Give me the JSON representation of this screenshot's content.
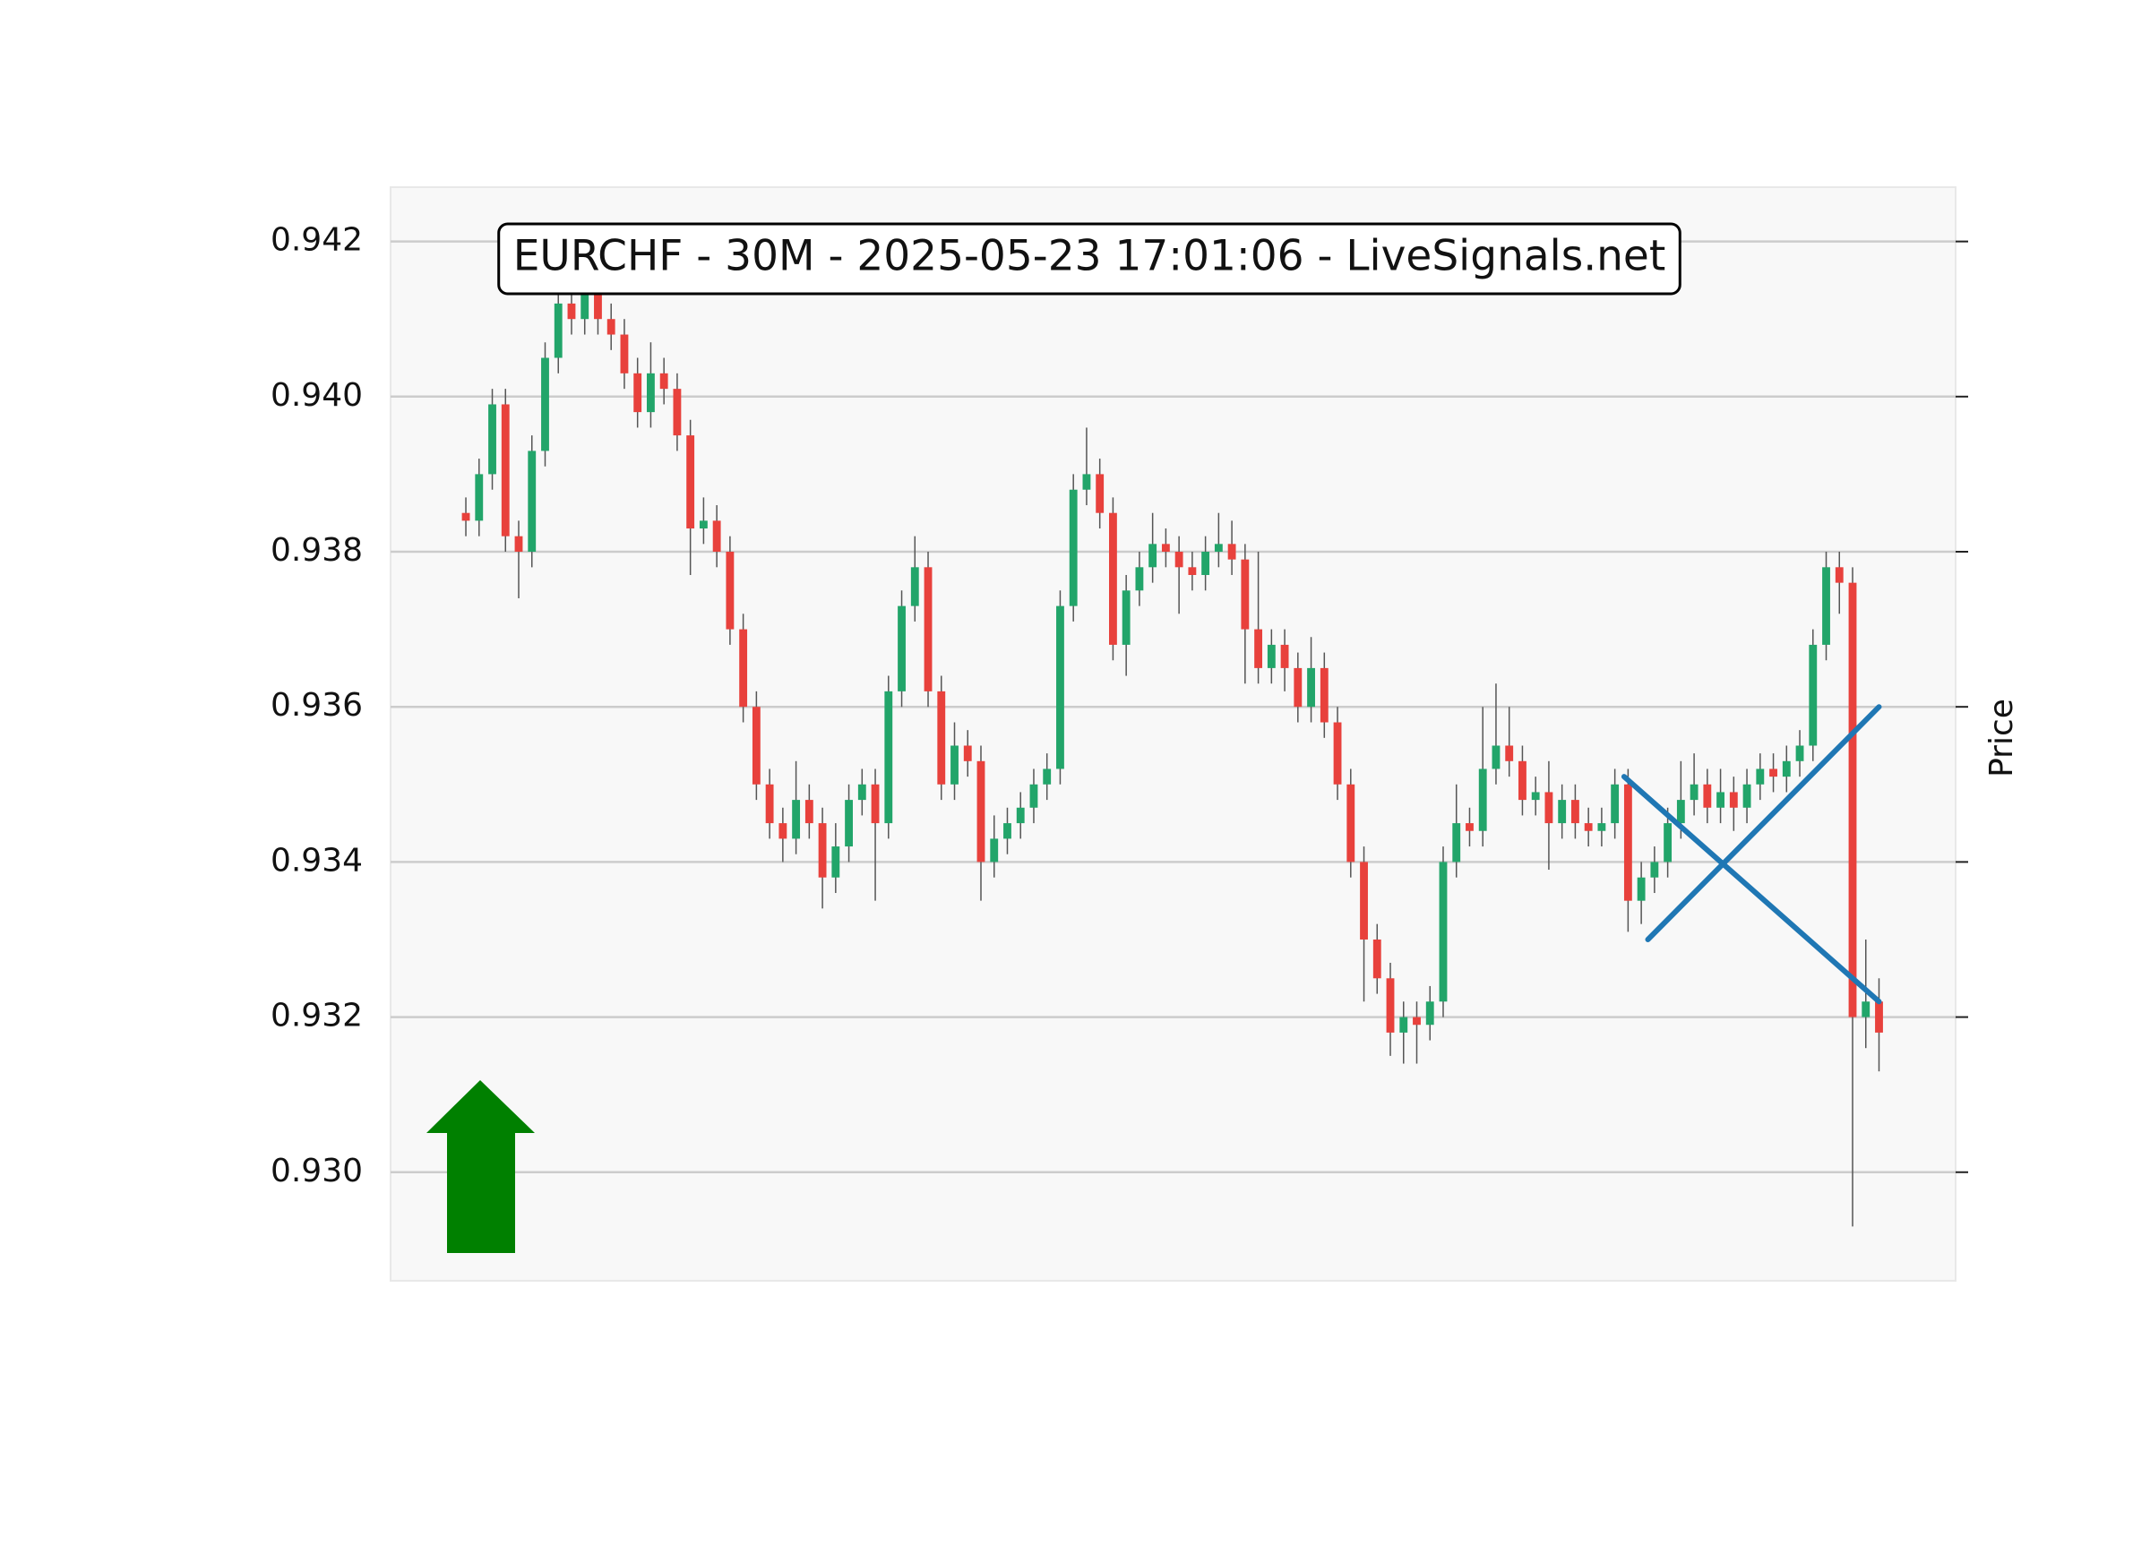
{
  "chart_data": {
    "type": "candlestick",
    "title": "EURCHF - 30M - 2025-05-23 17:01:06 - LiveSignals.net",
    "y_label": "Price",
    "up_color": "#22a56a",
    "down_color": "#e8413c",
    "wick_color": "#555555",
    "grid": true,
    "xlim": [
      -5.7,
      112.8
    ],
    "ylim": [
      0.9286,
      0.9427
    ],
    "yticks": [
      {
        "value": 0.93,
        "label": "0.930"
      },
      0.932,
      0.934,
      0.936,
      0.938,
      {
        "value": 0.94,
        "label": "0.940"
      },
      0.942
    ],
    "open": [
      0.9385,
      0.9384,
      0.939,
      0.9399,
      0.9382,
      0.938,
      0.9393,
      0.9405,
      0.9412,
      0.941,
      0.9418,
      0.941,
      0.9408,
      0.9403,
      0.9398,
      0.9403,
      0.9401,
      0.9395,
      0.9383,
      0.9384,
      0.938,
      0.937,
      0.936,
      0.935,
      0.9345,
      0.9343,
      0.9348,
      0.9345,
      0.9338,
      0.9342,
      0.9348,
      0.935,
      0.9345,
      0.9362,
      0.9373,
      0.9378,
      0.9362,
      0.935,
      0.9355,
      0.9353,
      0.934,
      0.9343,
      0.9345,
      0.9347,
      0.935,
      0.9352,
      0.9373,
      0.9388,
      0.939,
      0.9385,
      0.9368,
      0.9375,
      0.9378,
      0.9381,
      0.938,
      0.9378,
      0.9377,
      0.938,
      0.9381,
      0.9379,
      0.937,
      0.9365,
      0.9368,
      0.9365,
      0.936,
      0.9365,
      0.9358,
      0.935,
      0.934,
      0.933,
      0.9325,
      0.9318,
      0.932,
      0.9319,
      0.9322,
      0.934,
      0.9345,
      0.9344,
      0.9352,
      0.9355,
      0.9353,
      0.9348,
      0.9349,
      0.9345,
      0.9348,
      0.9345,
      0.9344,
      0.9345,
      0.935,
      0.9335,
      0.9338,
      0.934,
      0.9345,
      0.9348,
      0.935,
      0.9347,
      0.9349,
      0.9347,
      0.935,
      0.9352,
      0.9351,
      0.9353,
      0.9355,
      0.9368,
      0.9378,
      0.9376,
      0.932,
      0.9322
    ],
    "high": [
      0.9387,
      0.9392,
      0.9401,
      0.9401,
      0.9384,
      0.9395,
      0.9407,
      0.9414,
      0.9414,
      0.942,
      0.942,
      0.9412,
      0.941,
      0.9405,
      0.9407,
      0.9405,
      0.9403,
      0.9397,
      0.9387,
      0.9386,
      0.9382,
      0.9372,
      0.9362,
      0.9352,
      0.9347,
      0.9353,
      0.935,
      0.9347,
      0.9345,
      0.935,
      0.9352,
      0.9352,
      0.9364,
      0.9375,
      0.9382,
      0.938,
      0.9364,
      0.9358,
      0.9357,
      0.9355,
      0.9346,
      0.9347,
      0.9349,
      0.9352,
      0.9354,
      0.9375,
      0.939,
      0.9396,
      0.9392,
      0.9387,
      0.9377,
      0.938,
      0.9385,
      0.9383,
      0.9382,
      0.938,
      0.9382,
      0.9385,
      0.9384,
      0.9381,
      0.938,
      0.937,
      0.937,
      0.9367,
      0.9369,
      0.9367,
      0.936,
      0.9352,
      0.9342,
      0.9332,
      0.9327,
      0.9322,
      0.9322,
      0.9324,
      0.9342,
      0.935,
      0.9347,
      0.936,
      0.9363,
      0.936,
      0.9355,
      0.9351,
      0.9353,
      0.935,
      0.935,
      0.9347,
      0.9347,
      0.9352,
      0.9352,
      0.934,
      0.9342,
      0.9347,
      0.9353,
      0.9354,
      0.9352,
      0.9352,
      0.9351,
      0.9352,
      0.9354,
      0.9354,
      0.9355,
      0.9357,
      0.937,
      0.938,
      0.938,
      0.9378,
      0.933,
      0.9325
    ],
    "low": [
      0.9382,
      0.9382,
      0.9388,
      0.938,
      0.9374,
      0.9378,
      0.9391,
      0.9403,
      0.9408,
      0.9408,
      0.9408,
      0.9406,
      0.9401,
      0.9396,
      0.9396,
      0.9399,
      0.9393,
      0.9377,
      0.9381,
      0.9378,
      0.9368,
      0.9358,
      0.9348,
      0.9343,
      0.934,
      0.9341,
      0.9343,
      0.9334,
      0.9336,
      0.934,
      0.9346,
      0.9335,
      0.9343,
      0.936,
      0.9371,
      0.936,
      0.9348,
      0.9348,
      0.9351,
      0.9335,
      0.9338,
      0.9341,
      0.9343,
      0.9345,
      0.9348,
      0.935,
      0.9371,
      0.9386,
      0.9383,
      0.9366,
      0.9364,
      0.9373,
      0.9376,
      0.9378,
      0.9372,
      0.9375,
      0.9375,
      0.9378,
      0.9377,
      0.9363,
      0.9363,
      0.9363,
      0.9362,
      0.9358,
      0.9358,
      0.9356,
      0.9348,
      0.9338,
      0.9322,
      0.9323,
      0.9315,
      0.9314,
      0.9314,
      0.9317,
      0.932,
      0.9338,
      0.9342,
      0.9342,
      0.935,
      0.9351,
      0.9346,
      0.9346,
      0.9339,
      0.9343,
      0.9343,
      0.9342,
      0.9342,
      0.9343,
      0.9331,
      0.9332,
      0.9336,
      0.9338,
      0.9343,
      0.9346,
      0.9345,
      0.9345,
      0.9344,
      0.9345,
      0.9348,
      0.9349,
      0.9349,
      0.9351,
      0.9353,
      0.9366,
      0.9372,
      0.9293,
      0.9316,
      0.9313
    ],
    "close": [
      0.9384,
      0.939,
      0.9399,
      0.9382,
      0.938,
      0.9393,
      0.9405,
      0.9412,
      0.941,
      0.9418,
      0.941,
      0.9408,
      0.9403,
      0.9398,
      0.9403,
      0.9401,
      0.9395,
      0.9383,
      0.9384,
      0.938,
      0.937,
      0.936,
      0.935,
      0.9345,
      0.9343,
      0.9348,
      0.9345,
      0.9338,
      0.9342,
      0.9348,
      0.935,
      0.9345,
      0.9362,
      0.9373,
      0.9378,
      0.9362,
      0.935,
      0.9355,
      0.9353,
      0.934,
      0.9343,
      0.9345,
      0.9347,
      0.935,
      0.9352,
      0.9373,
      0.9388,
      0.939,
      0.9385,
      0.9368,
      0.9375,
      0.9378,
      0.9381,
      0.938,
      0.9378,
      0.9377,
      0.938,
      0.9381,
      0.9379,
      0.937,
      0.9365,
      0.9368,
      0.9365,
      0.936,
      0.9365,
      0.9358,
      0.935,
      0.934,
      0.933,
      0.9325,
      0.9318,
      0.932,
      0.9319,
      0.9322,
      0.934,
      0.9345,
      0.9344,
      0.9352,
      0.9355,
      0.9353,
      0.9348,
      0.9349,
      0.9345,
      0.9348,
      0.9345,
      0.9344,
      0.9345,
      0.935,
      0.9335,
      0.9338,
      0.934,
      0.9345,
      0.9348,
      0.935,
      0.9347,
      0.9349,
      0.9347,
      0.935,
      0.9352,
      0.9351,
      0.9353,
      0.9355,
      0.9368,
      0.9378,
      0.9376,
      0.932,
      0.9322,
      0.9318
    ],
    "lines": [
      {
        "color": "#1f77b4",
        "x": [
          87.7,
          107
        ],
        "y": [
          0.9351,
          0.9322
        ]
      },
      {
        "color": "#1f77b4",
        "x": [
          89.5,
          107
        ],
        "y": [
          0.933,
          0.936
        ]
      }
    ]
  }
}
